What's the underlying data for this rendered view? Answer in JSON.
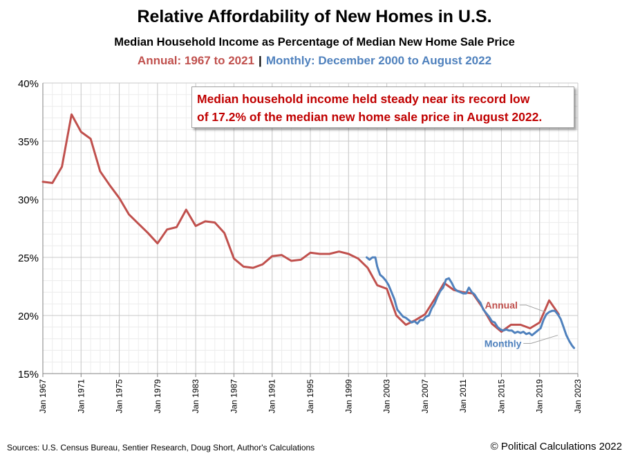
{
  "title": "Relative Affordability of New Homes in U.S.",
  "subtitle": "Median Household  Income as Percentage of Median New Home Sale Price",
  "subtitle2": {
    "annual": "Annual:  1967 to 2021",
    "separator": "|",
    "monthly": "Monthly:  December 2000 to August 2022"
  },
  "callout": {
    "line1": "Median household  income held steady near its record low",
    "line2": "of 17.2% of the median new home sale price in August 2022."
  },
  "footer": {
    "source": "Sources: U.S. Census Bureau, Sentier Research, Doug Short, Author's Calculations",
    "copyright": "© Political Calculations 2022"
  },
  "chart_data": {
    "type": "line",
    "title": "Relative Affordability of New Homes in U.S.",
    "xlabel": "",
    "ylabel": "",
    "ylim": [
      15,
      40
    ],
    "yticks": [
      15,
      20,
      25,
      30,
      35,
      40
    ],
    "ytick_labels": [
      "15%",
      "20%",
      "25%",
      "30%",
      "35%",
      "40%"
    ],
    "xlim": [
      1967,
      2023
    ],
    "xticks": [
      1967,
      1971,
      1975,
      1979,
      1983,
      1987,
      1991,
      1995,
      1999,
      2003,
      2007,
      2011,
      2015,
      2019,
      2023
    ],
    "xtick_labels": [
      "Jan 1967",
      "Jan 1971",
      "Jan 1975",
      "Jan 1979",
      "Jan 1983",
      "Jan 1987",
      "Jan 1991",
      "Jan 1995",
      "Jan 1999",
      "Jan 2003",
      "Jan 2007",
      "Jan 2011",
      "Jan 2015",
      "Jan 2019",
      "Jan 2023"
    ],
    "grid": true,
    "series": [
      {
        "name": "Annual",
        "color": "#c0504d",
        "x": [
          1967,
          1968,
          1969,
          1970,
          1971,
          1972,
          1973,
          1974,
          1975,
          1976,
          1977,
          1978,
          1979,
          1980,
          1981,
          1982,
          1983,
          1984,
          1985,
          1986,
          1987,
          1988,
          1989,
          1990,
          1991,
          1992,
          1993,
          1994,
          1995,
          1996,
          1997,
          1998,
          1999,
          2000,
          2001,
          2002,
          2003,
          2004,
          2005,
          2006,
          2007,
          2008,
          2009,
          2010,
          2011,
          2012,
          2013,
          2014,
          2015,
          2016,
          2017,
          2018,
          2019,
          2020,
          2021
        ],
        "values": [
          31.5,
          31.4,
          32.8,
          37.3,
          35.8,
          35.2,
          32.4,
          31.2,
          30.1,
          28.7,
          27.9,
          27.1,
          26.2,
          27.4,
          27.6,
          29.1,
          27.7,
          28.1,
          28.0,
          27.1,
          24.9,
          24.2,
          24.1,
          24.4,
          25.1,
          25.2,
          24.7,
          24.8,
          25.4,
          25.3,
          25.3,
          25.5,
          25.3,
          24.9,
          24.1,
          22.6,
          22.3,
          20.0,
          19.2,
          19.6,
          20.1,
          21.4,
          22.8,
          22.2,
          22.0,
          21.9,
          20.7,
          19.3,
          18.6,
          19.2,
          19.2,
          18.9,
          19.4,
          21.3,
          20.1
        ]
      },
      {
        "name": "Monthly",
        "color": "#4f81bd",
        "x": [
          2000.9,
          2001.2,
          2001.5,
          2001.8,
          2002.0,
          2002.3,
          2002.6,
          2002.9,
          2003.2,
          2003.5,
          2003.8,
          2004.1,
          2004.4,
          2004.7,
          2005.0,
          2005.3,
          2005.6,
          2005.9,
          2006.2,
          2006.5,
          2006.8,
          2007.1,
          2007.4,
          2007.7,
          2008.0,
          2008.3,
          2008.6,
          2008.9,
          2009.2,
          2009.5,
          2009.8,
          2010.1,
          2010.4,
          2010.7,
          2011.0,
          2011.3,
          2011.6,
          2011.9,
          2012.2,
          2012.5,
          2012.8,
          2013.1,
          2013.4,
          2013.7,
          2014.0,
          2014.3,
          2014.6,
          2014.9,
          2015.2,
          2015.5,
          2015.8,
          2016.1,
          2016.4,
          2016.7,
          2017.0,
          2017.3,
          2017.6,
          2017.9,
          2018.2,
          2018.5,
          2018.8,
          2019.1,
          2019.4,
          2019.7,
          2020.0,
          2020.3,
          2020.6,
          2020.9,
          2021.2,
          2021.5,
          2021.8,
          2022.1,
          2022.4,
          2022.6
        ],
        "values": [
          25.0,
          24.8,
          25.0,
          25.0,
          24.2,
          23.5,
          23.3,
          23.0,
          22.6,
          22.0,
          21.4,
          20.5,
          20.2,
          19.9,
          19.8,
          19.6,
          19.4,
          19.5,
          19.3,
          19.6,
          19.6,
          19.9,
          20.0,
          20.6,
          21.0,
          21.6,
          22.1,
          22.4,
          23.1,
          23.2,
          22.8,
          22.3,
          22.1,
          22.0,
          21.9,
          21.9,
          22.4,
          22.0,
          21.8,
          21.4,
          21.1,
          20.5,
          20.2,
          19.9,
          19.5,
          19.4,
          19.0,
          18.8,
          18.7,
          18.8,
          18.7,
          18.7,
          18.5,
          18.6,
          18.5,
          18.6,
          18.4,
          18.5,
          18.3,
          18.5,
          18.7,
          18.9,
          19.6,
          20.1,
          20.3,
          20.4,
          20.4,
          20.1,
          19.7,
          19.0,
          18.3,
          17.8,
          17.4,
          17.2
        ]
      }
    ],
    "annotations": [
      {
        "text": "Annual",
        "color": "#c0504d"
      },
      {
        "text": "Monthly",
        "color": "#4f81bd"
      }
    ]
  }
}
